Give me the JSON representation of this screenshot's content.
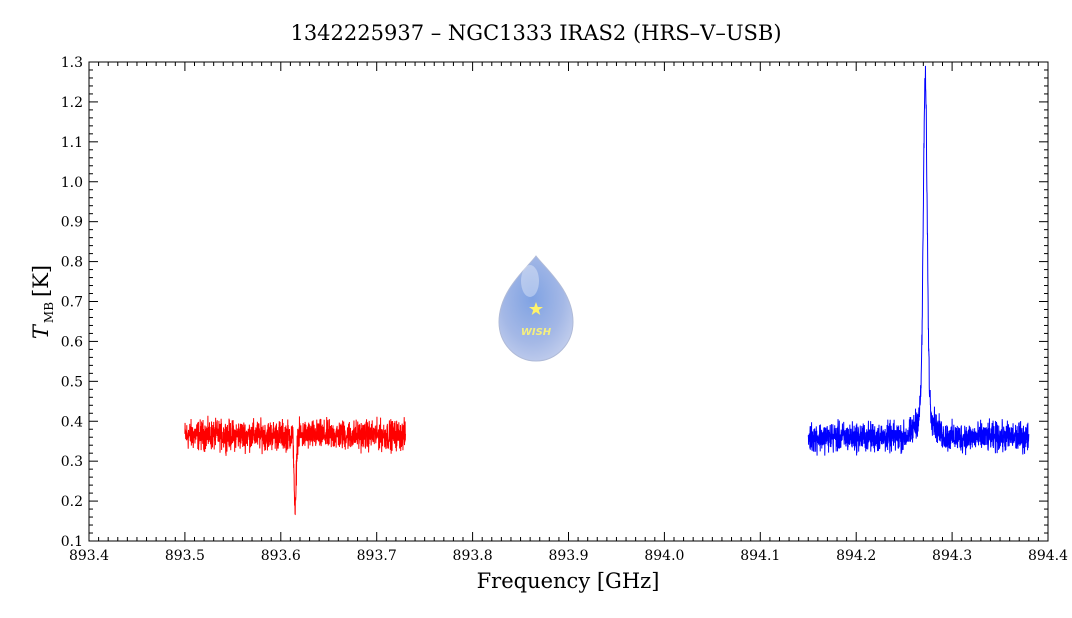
{
  "chart_data": {
    "type": "line",
    "title": "1342225937 – NGC1333 IRAS2 (HRS–V–USB)",
    "xlabel": "Frequency [GHz]",
    "ylabel_main": "T",
    "ylabel_sub": "MB",
    "ylabel_unit": "[K]",
    "xlim": [
      893.4,
      894.4
    ],
    "ylim": [
      0.1,
      1.3
    ],
    "x_ticks": [
      "893.4",
      "893.5",
      "893.6",
      "893.7",
      "893.8",
      "893.9",
      "894.0",
      "894.1",
      "894.2",
      "894.3",
      "894.4"
    ],
    "y_ticks": [
      "0.1",
      "0.2",
      "0.3",
      "0.4",
      "0.5",
      "0.6",
      "0.7",
      "0.8",
      "0.9",
      "1.0",
      "1.1",
      "1.2",
      "1.3"
    ],
    "grid": false,
    "series": [
      {
        "color": "#ff0000",
        "x_range": [
          893.5,
          893.73
        ],
        "baseline": 0.365,
        "noise_amplitude": 0.035,
        "features": [
          {
            "type": "absorption",
            "center": 893.615,
            "min_value": 0.17,
            "width": 0.001
          }
        ]
      },
      {
        "color": "#0000ff",
        "x_range": [
          894.15,
          894.38
        ],
        "baseline": 0.36,
        "noise_amplitude": 0.035,
        "features": [
          {
            "type": "emission",
            "center": 894.272,
            "peak_value": 1.185,
            "width": 0.002,
            "wing_value": 0.48
          }
        ]
      }
    ],
    "watermark": {
      "text": "WISH"
    }
  }
}
